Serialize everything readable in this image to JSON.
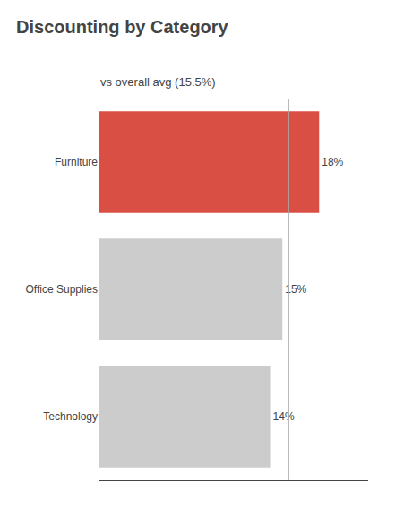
{
  "chart_data": {
    "type": "bar",
    "orientation": "horizontal",
    "title": "Discounting by Category",
    "subtitle": "vs overall avg (15.5%)",
    "categories": [
      "Furniture",
      "Office Supplies",
      "Technology"
    ],
    "values": [
      18,
      15,
      14
    ],
    "value_labels": [
      "18%",
      "15%",
      "14%"
    ],
    "data_labels": true,
    "colors": [
      "#d94f43",
      "#cccccc",
      "#cccccc"
    ],
    "reference_line": {
      "x": 15.5,
      "color": "#aaaaaa"
    },
    "xlim": [
      0,
      22
    ],
    "grid": false,
    "tick_labels": "y"
  }
}
